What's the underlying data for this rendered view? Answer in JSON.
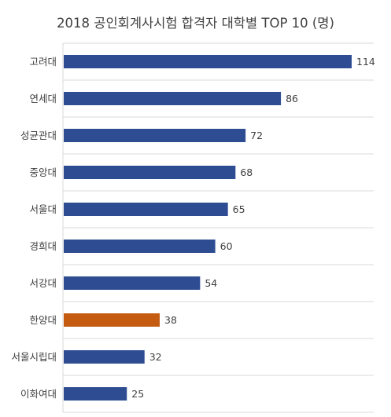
{
  "chart_data": {
    "type": "bar",
    "orientation": "horizontal",
    "title": "2018 공인회계사시험 합격자 대학별 TOP 10 (명)",
    "xlabel": "",
    "ylabel": "",
    "xlim": [
      0,
      120
    ],
    "grid": "horizontal separators between categories",
    "categories": [
      "고려대",
      "연세대",
      "성균관대",
      "중앙대",
      "서울대",
      "경희대",
      "서강대",
      "한양대",
      "서울시립대",
      "이화여대"
    ],
    "values": [
      114,
      86,
      72,
      68,
      65,
      60,
      54,
      38,
      32,
      25
    ],
    "colors": {
      "default": "#2E4C92",
      "highlight": "#C55A11",
      "grid": "#D9D9D9",
      "text": "#404040"
    },
    "highlight_category": "한양대"
  }
}
